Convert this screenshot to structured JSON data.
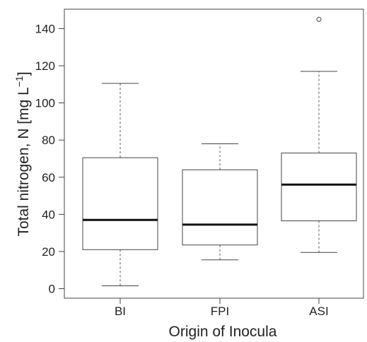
{
  "chart_data": {
    "type": "box",
    "title": "",
    "xlabel": "Origin of Inocula",
    "ylabel": "Total nitrogen, N [mg L",
    "ylabel_superscript": "−1",
    "ylabel_suffix": "]",
    "ylim": [
      -5,
      150
    ],
    "y_ticks": [
      0,
      20,
      40,
      60,
      80,
      100,
      120,
      140
    ],
    "categories": [
      "BI",
      "FPI",
      "ASI"
    ],
    "boxes": [
      {
        "category": "BI",
        "whisker_low": 1.5,
        "q1": 21,
        "median": 37,
        "q3": 70.5,
        "whisker_high": 110.5,
        "outliers": []
      },
      {
        "category": "FPI",
        "whisker_low": 15.5,
        "q1": 23.5,
        "median": 34.5,
        "q3": 64,
        "whisker_high": 78,
        "outliers": []
      },
      {
        "category": "ASI",
        "whisker_low": 19.5,
        "q1": 36.5,
        "median": 56,
        "q3": 73,
        "whisker_high": 117,
        "outliers": [
          145
        ]
      }
    ],
    "grid": false,
    "legend": "none"
  }
}
